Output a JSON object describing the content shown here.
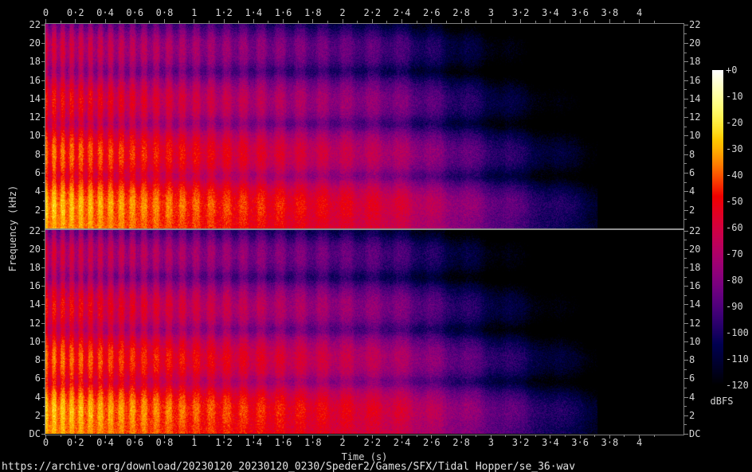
{
  "window": {
    "background": "#000000"
  },
  "footer": {
    "source_url": "https://archive·org/download/20230120_20230120_0230/Speder2/Games/SFX/Tidal Hopper/se_36·wav"
  },
  "axes": {
    "time": {
      "title": "Time (s)",
      "range_s": [
        0,
        4.3
      ],
      "major_tick_values": [
        0,
        0.2,
        0.4,
        0.6,
        0.8,
        1,
        1.2,
        1.4,
        1.6,
        1.8,
        2,
        2.2,
        2.4,
        2.6,
        2.8,
        3,
        3.2,
        3.4,
        3.6,
        3.8,
        4
      ],
      "major_tick_labels": [
        "0",
        "0·2",
        "0·4",
        "0·6",
        "0·8",
        "1",
        "1·2",
        "1·4",
        "1·6",
        "1·8",
        "2",
        "2·2",
        "2·4",
        "2·6",
        "2·8",
        "3",
        "3·2",
        "3·4",
        "3·6",
        "3·8",
        "4"
      ],
      "minor_tick_step": 0.1
    },
    "frequency": {
      "title": "Frequency (kHz)",
      "range_khz": [
        0,
        22.05
      ],
      "major_tick_values": [
        22,
        20,
        18,
        16,
        14,
        12,
        10,
        8,
        6,
        4,
        2
      ],
      "major_tick_labels": [
        "22",
        "20",
        "18",
        "16",
        "14",
        "12",
        "10",
        "8",
        "6",
        "4",
        "2"
      ],
      "dc_label": "DC",
      "minor_tick_step": 1
    },
    "colorbar": {
      "unit": "dBFS",
      "range_db": [
        0,
        -120
      ],
      "tick_values": [
        0,
        -10,
        -20,
        -30,
        -40,
        -50,
        -60,
        -70,
        -80,
        -90,
        -100,
        -110,
        -120
      ],
      "tick_labels": [
        "+0",
        "-10",
        "-20",
        "-30",
        "-40",
        "-50",
        "-60",
        "-70",
        "-80",
        "-90",
        "-100",
        "-110",
        "-120"
      ]
    }
  },
  "chart_data": {
    "type": "heatmap",
    "subtype": "audio-spectrogram",
    "channels": [
      {
        "name": "channel-1"
      },
      {
        "name": "channel-2"
      }
    ],
    "x": {
      "label": "Time (s)",
      "min": 0,
      "max": 4.3
    },
    "y": {
      "label": "Frequency (kHz)",
      "min": 0,
      "max": 22.05
    },
    "z": {
      "label": "dBFS",
      "min": -120,
      "max": 0
    },
    "palette": "sox-spectrum",
    "legend_position": "right-colorbar",
    "grid": false,
    "render_model": {
      "seeds": [
        101,
        20230120
      ],
      "base_db_at_dc": -23,
      "db_per_khz": -1.9,
      "comb_period_khz": 5.65,
      "comb_depth_db": 4.5,
      "notch_centers_khz": [
        5.65,
        11.3,
        16.95
      ],
      "notch_depth_db": 7.5,
      "notch_sigma_khz": 0.5,
      "decay_db_per_s": 13.5,
      "late_decay_db_per_s": 24,
      "late_decay_start_s": 2.35,
      "end_time_s": 3.72,
      "tremolo_start_hz": 18,
      "tremolo_slowdown_per_s": 0.55,
      "tremolo_depth_db": 7.5,
      "tremolo_depth_tau_s": 2.4,
      "noise_db": 8.5,
      "high_shelf_start_khz": 20.5,
      "high_shelf_db_per_khz": -3
    }
  }
}
